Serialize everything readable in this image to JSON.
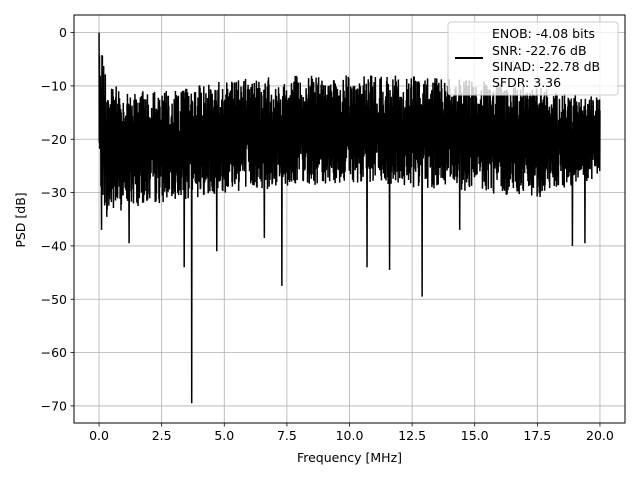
{
  "chart_data": {
    "type": "line",
    "title": "",
    "xlabel": "Frequency [MHz]",
    "ylabel": "PSD [dB]",
    "xlim": [
      -1.0,
      21.0
    ],
    "ylim": [
      -73.2,
      3.3
    ],
    "xticks": [
      0.0,
      2.5,
      5.0,
      7.5,
      10.0,
      12.5,
      15.0,
      17.5,
      20.0
    ],
    "xtick_labels": [
      "0.0",
      "2.5",
      "5.0",
      "7.5",
      "10.0",
      "12.5",
      "15.0",
      "17.5",
      "20.0"
    ],
    "yticks": [
      0,
      -10,
      -20,
      -30,
      -40,
      -50,
      -60,
      -70
    ],
    "ytick_labels": [
      "0",
      "−10",
      "−20",
      "−30",
      "−40",
      "−50",
      "−60",
      "−70"
    ],
    "grid": true,
    "legend_position": "top-right",
    "legend_entries": [
      "ENOB: -4.08 bits",
      "SNR: -22.76 dB",
      "SINAD: -22.78 dB",
      "SFDR: 3.36"
    ],
    "series": [
      {
        "color": "#000000",
        "x_range": [
          0.0,
          20.0
        ],
        "band_envelope": [
          {
            "x": 0.0,
            "low": -28,
            "high": 0
          },
          {
            "x": 0.3,
            "low": -35,
            "high": -9
          },
          {
            "x": 1.0,
            "low": -33,
            "high": -11
          },
          {
            "x": 2.5,
            "low": -32,
            "high": -11
          },
          {
            "x": 5.0,
            "low": -30,
            "high": -9
          },
          {
            "x": 7.5,
            "low": -29,
            "high": -8
          },
          {
            "x": 10.0,
            "low": -28,
            "high": -8
          },
          {
            "x": 12.5,
            "low": -29,
            "high": -8
          },
          {
            "x": 15.0,
            "low": -30,
            "high": -9
          },
          {
            "x": 17.5,
            "low": -31,
            "high": -10
          },
          {
            "x": 20.0,
            "low": -27,
            "high": -12
          }
        ],
        "notable_dips": [
          {
            "x": 0.1,
            "y": -37
          },
          {
            "x": 1.2,
            "y": -39.5
          },
          {
            "x": 3.4,
            "y": -44
          },
          {
            "x": 3.7,
            "y": -69.5
          },
          {
            "x": 4.7,
            "y": -41
          },
          {
            "x": 6.6,
            "y": -38.5
          },
          {
            "x": 7.3,
            "y": -47.5
          },
          {
            "x": 10.7,
            "y": -44
          },
          {
            "x": 11.6,
            "y": -44.5
          },
          {
            "x": 12.9,
            "y": -49.5
          },
          {
            "x": 14.4,
            "y": -37
          },
          {
            "x": 18.9,
            "y": -40
          },
          {
            "x": 19.4,
            "y": -39.5
          }
        ]
      }
    ]
  }
}
